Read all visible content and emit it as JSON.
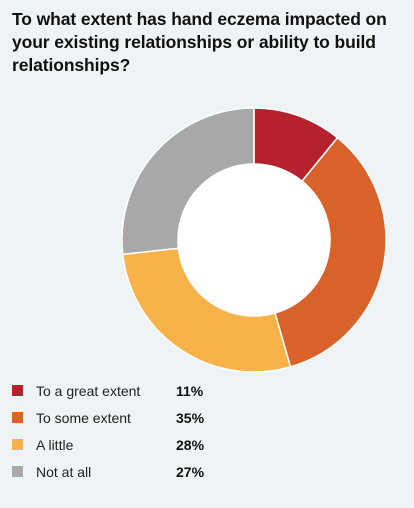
{
  "chart_data": {
    "type": "pie",
    "subtype": "donut",
    "title": "To what extent has hand eczema impacted on your existing relationships or ability to build relationships?",
    "categories": [
      "To a great extent",
      "To some extent",
      "A little",
      "Not at all"
    ],
    "values": [
      11,
      35,
      28,
      27
    ],
    "value_labels": [
      "11%",
      "35%",
      "28%",
      "27%"
    ],
    "unit": "%",
    "colors": [
      "#b5222e",
      "#d9622b",
      "#f7b24a",
      "#a8a8a8"
    ],
    "legend_position": "bottom-left"
  }
}
